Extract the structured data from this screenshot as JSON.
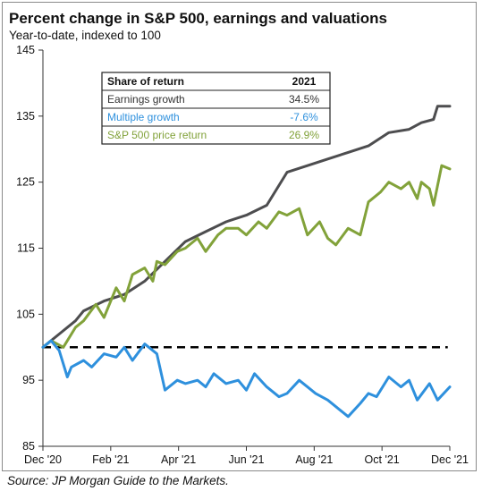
{
  "chart_data": {
    "type": "line",
    "title": "Percent change in S&P 500, earnings and valuations",
    "subtitle": "Year-to-date, indexed to 100",
    "xlabel": "",
    "ylabel": "",
    "ylim": [
      85,
      145
    ],
    "y_ticks": [
      "85",
      "95",
      "105",
      "115",
      "125",
      "135",
      "145"
    ],
    "x_ticks": [
      "Dec '20",
      "Feb '21",
      "Apr '21",
      "Jun '21",
      "Aug '21",
      "Oct '21",
      "Dec '21"
    ],
    "grid": false,
    "reference_line": {
      "value": 100,
      "style": "dashed",
      "color": "#000000"
    },
    "series": [
      {
        "key": "earnings",
        "color": "#4d4d4f",
        "x": [
          0,
          0.04,
          0.08,
          0.1,
          0.15,
          0.2,
          0.25,
          0.3,
          0.35,
          0.4,
          0.45,
          0.5,
          0.55,
          0.6,
          0.65,
          0.7,
          0.75,
          0.8,
          0.85,
          0.9,
          0.93,
          0.96,
          0.97,
          0.98,
          1.0
        ],
        "values": [
          100,
          102,
          104,
          105.5,
          107,
          108,
          110,
          113,
          116,
          117.5,
          119,
          120,
          121.5,
          126.5,
          127.5,
          128.5,
          129.5,
          130.5,
          132.5,
          133,
          134,
          134.5,
          136.5,
          136.5,
          136.5
        ]
      },
      {
        "key": "price_return",
        "color": "#82a23a",
        "x": [
          0,
          0.02,
          0.05,
          0.08,
          0.1,
          0.13,
          0.15,
          0.18,
          0.2,
          0.22,
          0.25,
          0.27,
          0.28,
          0.3,
          0.33,
          0.35,
          0.38,
          0.4,
          0.43,
          0.45,
          0.48,
          0.5,
          0.53,
          0.55,
          0.58,
          0.6,
          0.63,
          0.65,
          0.68,
          0.7,
          0.72,
          0.75,
          0.78,
          0.8,
          0.83,
          0.85,
          0.88,
          0.9,
          0.92,
          0.93,
          0.95,
          0.96,
          0.98,
          1.0
        ],
        "values": [
          100,
          101,
          100,
          103,
          104,
          106.5,
          104.5,
          109,
          107,
          111,
          112,
          110,
          113,
          112.5,
          114.5,
          115,
          116.5,
          114.5,
          117,
          118,
          118,
          117,
          119,
          118,
          120.5,
          120,
          121,
          117,
          119,
          116.5,
          115.5,
          118,
          117,
          122,
          123.5,
          125,
          124,
          125,
          122.5,
          125,
          124,
          121.5,
          127.5,
          127
        ]
      },
      {
        "key": "multiple",
        "color": "#2e90dd",
        "x": [
          0,
          0.02,
          0.04,
          0.06,
          0.07,
          0.1,
          0.12,
          0.15,
          0.18,
          0.2,
          0.22,
          0.25,
          0.28,
          0.3,
          0.33,
          0.35,
          0.38,
          0.4,
          0.42,
          0.45,
          0.48,
          0.5,
          0.52,
          0.55,
          0.58,
          0.6,
          0.63,
          0.65,
          0.67,
          0.7,
          0.72,
          0.75,
          0.78,
          0.8,
          0.82,
          0.85,
          0.88,
          0.9,
          0.92,
          0.95,
          0.97,
          1.0
        ],
        "values": [
          100,
          101,
          99.5,
          95.5,
          97,
          98,
          97,
          99,
          98.5,
          100,
          98,
          100.5,
          99,
          93.5,
          95,
          94.5,
          95,
          94,
          96,
          94.5,
          95,
          93.5,
          96,
          94,
          92.5,
          93,
          95,
          94,
          93,
          92,
          91,
          89.5,
          91.5,
          93,
          92.5,
          95.5,
          94,
          95,
          92,
          94.5,
          92,
          94
        ]
      }
    ],
    "table": {
      "header": [
        "Share of return",
        "2021"
      ],
      "rows": [
        {
          "label": "Earnings growth",
          "value": "34.5%",
          "color": "#333333"
        },
        {
          "label": "Multiple growth",
          "value": "-7.6%",
          "color": "#2e90dd"
        },
        {
          "label": "S&P 500 price return",
          "value": "26.9%",
          "color": "#82a23a"
        }
      ]
    }
  },
  "source": "Source: JP Morgan Guide to the Markets."
}
